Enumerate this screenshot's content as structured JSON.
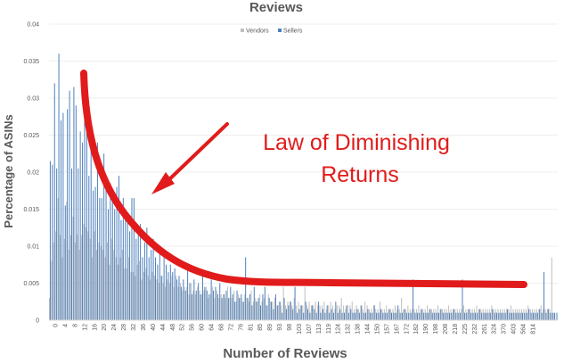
{
  "chart_data": {
    "type": "bar",
    "title": "Reviews",
    "xlabel": "Number of Reviews",
    "ylabel": "Percentage of ASINs",
    "ylim": [
      0,
      0.04
    ],
    "yticks": [
      "0",
      "0.005",
      "0.01",
      "0.015",
      "0.02",
      "0.025",
      "0.03",
      "0.035",
      "0.04"
    ],
    "xticks": [
      "0",
      "4",
      "8",
      "12",
      "16",
      "20",
      "24",
      "28",
      "32",
      "36",
      "40",
      "44",
      "48",
      "52",
      "56",
      "60",
      "64",
      "68",
      "72",
      "76",
      "81",
      "85",
      "89",
      "93",
      "98",
      "103",
      "107",
      "113",
      "119",
      "124",
      "132",
      "138",
      "144",
      "150",
      "157",
      "167",
      "172",
      "182",
      "190",
      "198",
      "208",
      "218",
      "225",
      "232",
      "261",
      "324",
      "370",
      "403",
      "564",
      "814"
    ],
    "grid": true,
    "legend": {
      "placement": "top-center"
    },
    "annotation": {
      "text_line1": "Law of Diminishing",
      "text_line2": "Returns",
      "color": "#e11b1b"
    },
    "series": [
      {
        "name": "Vendors",
        "color": "#bfbfbf"
      },
      {
        "name": "Sellers",
        "color": "#4f81bd"
      }
    ],
    "sellers_values": [
      0.0215,
      0.021,
      0.032,
      0.0205,
      0.036,
      0.027,
      0.028,
      0.0155,
      0.0285,
      0.031,
      0.0205,
      0.0315,
      0.029,
      0.0205,
      0.0255,
      0.024,
      0.03,
      0.026,
      0.0195,
      0.0255,
      0.0175,
      0.018,
      0.024,
      0.0165,
      0.0165,
      0.0225,
      0.0185,
      0.015,
      0.0185,
      0.0175,
      0.015,
      0.018,
      0.0195,
      0.0135,
      0.0165,
      0.015,
      0.0145,
      0.012,
      0.0165,
      0.0165,
      0.011,
      0.0115,
      0.013,
      0.0085,
      0.0105,
      0.0125,
      0.0085,
      0.0095,
      0.011,
      0.0085,
      0.0075,
      0.009,
      0.006,
      0.0085,
      0.0075,
      0.0065,
      0.0075,
      0.0065,
      0.007,
      0.0055,
      0.006,
      0.0045,
      0.0055,
      0.004,
      0.0075,
      0.005,
      0.0035,
      0.0055,
      0.004,
      0.005,
      0.0035,
      0.0065,
      0.0045,
      0.004,
      0.0035,
      0.0055,
      0.004,
      0.0045,
      0.0035,
      0.005,
      0.003,
      0.0035,
      0.004,
      0.003,
      0.0045,
      0.0035,
      0.0025,
      0.004,
      0.003,
      0.0035,
      0.0025,
      0.0085,
      0.003,
      0.0035,
      0.002,
      0.0045,
      0.0025,
      0.003,
      0.002,
      0.0035,
      0.0045,
      0.002,
      0.003,
      0.0025,
      0.0015,
      0.0035,
      0.002,
      0.0025,
      0.001,
      0.003,
      0.0015,
      0.002,
      0.0025,
      0.0015,
      0.0045,
      0.001,
      0.0015,
      0.002,
      0.001,
      0.0025,
      0.0015,
      0.001,
      0.002,
      0.0015,
      0.001,
      0.0025,
      0.001,
      0.0015,
      0.001,
      0.002,
      0.001,
      0.0015,
      0.001,
      0.0025,
      0.001,
      0.0015,
      0.001,
      0.001,
      0.002,
      0.001,
      0.0015,
      0.001,
      0.001,
      0.0015,
      0.001,
      0.002,
      0.001,
      0.001,
      0.0015,
      0.001,
      0.001,
      0.002,
      0.001,
      0.001,
      0.0015,
      0.001,
      0.001,
      0.001,
      0.0015,
      0.001,
      0.001,
      0.001,
      0.002,
      0.001,
      0.001,
      0.0015,
      0.001,
      0.001,
      0.001,
      0.0055,
      0.001,
      0.001,
      0.001,
      0.0015,
      0.001,
      0.001,
      0.001,
      0.0015,
      0.001,
      0.001,
      0.001,
      0.001,
      0.0015,
      0.001,
      0.001,
      0.001,
      0.001,
      0.001,
      0.0015,
      0.001,
      0.001,
      0.001,
      0.0055,
      0.001,
      0.001,
      0.0015,
      0.001,
      0.001,
      0.001,
      0.001,
      0.0015,
      0.001,
      0.001,
      0.001,
      0.001,
      0.001,
      0.0015,
      0.001,
      0.001,
      0.001,
      0.001,
      0.001,
      0.001,
      0.0015,
      0.001,
      0.001,
      0.001,
      0.001,
      0.001,
      0.001,
      0.001,
      0.001,
      0.001,
      0.0015,
      0.001,
      0.001,
      0.001,
      0.001,
      0.0015,
      0.001,
      0.0065,
      0.001,
      0.0015,
      0.001,
      0.001,
      0.001,
      0.001
    ],
    "vendors_values": [
      0.003,
      0.008,
      0.0105,
      0.012,
      0.0165,
      0.0115,
      0.0085,
      0.011,
      0.016,
      0.0095,
      0.0115,
      0.014,
      0.0105,
      0.0115,
      0.0095,
      0.0115,
      0.013,
      0.0125,
      0.012,
      0.011,
      0.0085,
      0.012,
      0.0095,
      0.0105,
      0.01,
      0.0095,
      0.0085,
      0.0105,
      0.0075,
      0.011,
      0.0095,
      0.0085,
      0.0075,
      0.0085,
      0.0095,
      0.007,
      0.007,
      0.0085,
      0.0065,
      0.0065,
      0.006,
      0.0075,
      0.008,
      0.0055,
      0.0065,
      0.007,
      0.006,
      0.0055,
      0.0065,
      0.006,
      0.0055,
      0.005,
      0.006,
      0.005,
      0.0045,
      0.0055,
      0.005,
      0.006,
      0.0045,
      0.006,
      0.0045,
      0.005,
      0.004,
      0.0045,
      0.0045,
      0.0035,
      0.005,
      0.004,
      0.0035,
      0.0045,
      0.004,
      0.0035,
      0.004,
      0.0045,
      0.003,
      0.0035,
      0.0045,
      0.003,
      0.004,
      0.003,
      0.0035,
      0.0035,
      0.003,
      0.0045,
      0.003,
      0.003,
      0.004,
      0.0025,
      0.0035,
      0.003,
      0.0025,
      0.0035,
      0.003,
      0.0025,
      0.004,
      0.0025,
      0.003,
      0.0025,
      0.0035,
      0.0025,
      0.003,
      0.002,
      0.0035,
      0.0025,
      0.0025,
      0.003,
      0.002,
      0.0025,
      0.002,
      0.0045,
      0.002,
      0.0025,
      0.0025,
      0.002,
      0.003,
      0.002,
      0.0025,
      0.002,
      0.002,
      0.0045,
      0.002,
      0.0025,
      0.002,
      0.002,
      0.0025,
      0.002,
      0.002,
      0.002,
      0.0025,
      0.0015,
      0.002,
      0.0025,
      0.002,
      0.0015,
      0.002,
      0.002,
      0.003,
      0.002,
      0.0015,
      0.002,
      0.002,
      0.0025,
      0.0015,
      0.002,
      0.0015,
      0.002,
      0.0015,
      0.0025,
      0.002,
      0.0015,
      0.0015,
      0.002,
      0.0015,
      0.0015,
      0.0025,
      0.0015,
      0.0015,
      0.002,
      0.0015,
      0.0015,
      0.0015,
      0.002,
      0.0015,
      0.0015,
      0.003,
      0.0015,
      0.0015,
      0.002,
      0.0015,
      0.0015,
      0.0015,
      0.0015,
      0.002,
      0.0015,
      0.0015,
      0.0015,
      0.002,
      0.0015,
      0.0015,
      0.0015,
      0.0015,
      0.002,
      0.0015,
      0.0015,
      0.0015,
      0.0015,
      0.002,
      0.0015,
      0.0015,
      0.0015,
      0.0015,
      0.0015,
      0.0015,
      0.002,
      0.0015,
      0.0015,
      0.0015,
      0.0015,
      0.0015,
      0.002,
      0.0015,
      0.0015,
      0.0015,
      0.0015,
      0.0015,
      0.0015,
      0.002,
      0.0015,
      0.0015,
      0.0015,
      0.0015,
      0.0015,
      0.0015,
      0.0015,
      0.0015,
      0.002,
      0.0015,
      0.0015,
      0.0015,
      0.0015,
      0.0015,
      0.0015,
      0.0015,
      0.002,
      0.0015,
      0.0015,
      0.0015,
      0.0015,
      0.0015,
      0.002,
      0.0015,
      0.0015,
      0.0015,
      0.0015,
      0.0085,
      0.001
    ]
  }
}
